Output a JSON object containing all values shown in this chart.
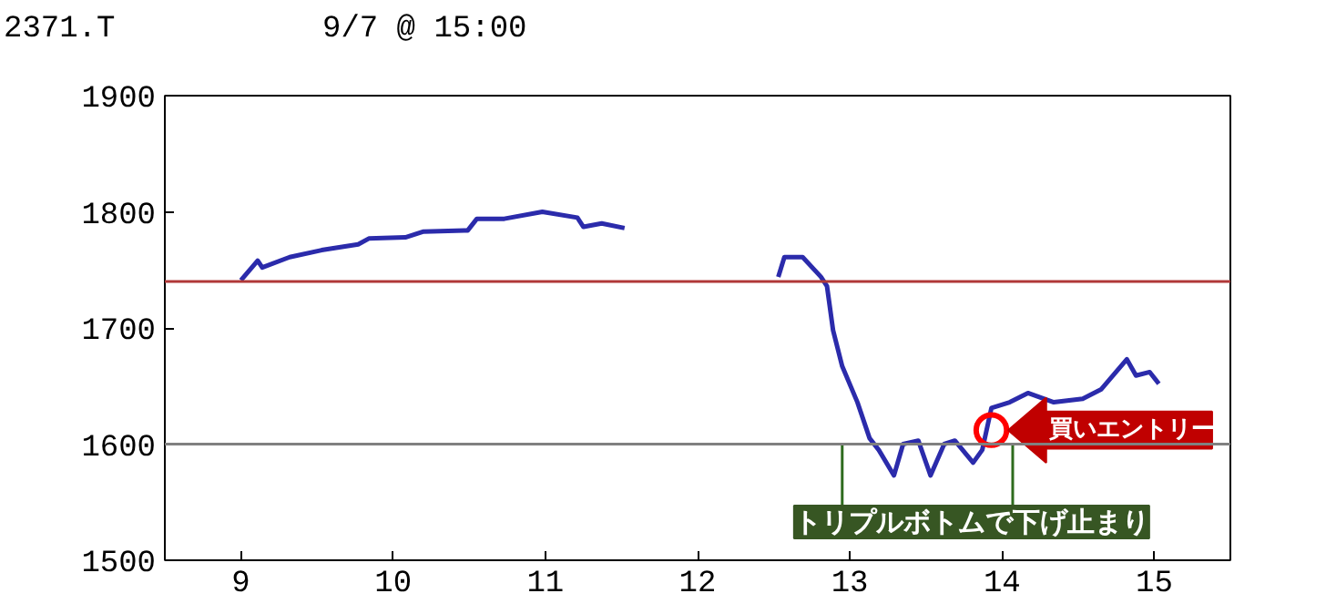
{
  "chart_data": {
    "type": "line",
    "title": "2371.T",
    "subtitle": "9/7 @ 15:00",
    "x": [
      9.0,
      9.11,
      9.14,
      9.32,
      9.53,
      9.77,
      9.84,
      10.08,
      10.2,
      10.49,
      10.55,
      10.73,
      10.98,
      11.21,
      11.25,
      11.37,
      11.52,
      12.0,
      12.53,
      12.57,
      12.69,
      12.81,
      12.85,
      12.89,
      12.95,
      13.05,
      13.13,
      13.19,
      13.29,
      13.35,
      13.45,
      13.53,
      13.62,
      13.69,
      13.81,
      13.87,
      13.93,
      14.05,
      14.17,
      14.34,
      14.53,
      14.65,
      14.82,
      14.88,
      14.97,
      15.03
    ],
    "series": [
      {
        "color": "#2b2bab",
        "values": [
          1741,
          1758,
          1752,
          1761,
          1767,
          1772,
          1777,
          1778,
          1783,
          1784,
          1794,
          1794,
          1800,
          1795,
          1787,
          1790,
          1786,
          null,
          1744,
          1761,
          1761,
          1744,
          1736,
          1698,
          1667,
          1636,
          1605,
          1595,
          1573,
          1600,
          1603,
          1573,
          1600,
          1603,
          1584,
          1595,
          1631,
          1636,
          1644,
          1636,
          1639,
          1647,
          1673,
          1659,
          1662,
          1652
        ]
      }
    ],
    "xlim": [
      8.5,
      15.5
    ],
    "ylim": [
      1500,
      1900
    ],
    "xticks": [
      9,
      10,
      11,
      12,
      13,
      14,
      15
    ],
    "yticks": [
      1500,
      1600,
      1700,
      1800,
      1900
    ],
    "grid": false,
    "marker": "none",
    "line_style": "solid",
    "ref_lines": [
      {
        "axis": "y",
        "value": 1740,
        "color": "#b03838"
      },
      {
        "axis": "y",
        "value": 1600,
        "color": "#808080"
      }
    ],
    "annotations": [
      {
        "text": "買いエントリー",
        "x": 13.93,
        "y": 1612
      },
      {
        "text": "トリプルボトムで下げ止まり",
        "x": 13.5,
        "y": 1585
      }
    ]
  }
}
